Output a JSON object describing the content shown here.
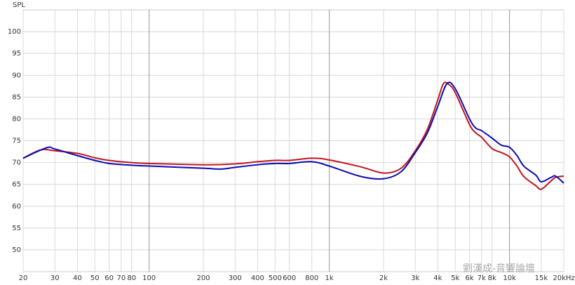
{
  "chart_data": {
    "type": "line",
    "y_label": "SPL",
    "watermark": "劉漢成-音響論壇",
    "xscale": "log",
    "grid": true,
    "xlim": [
      20,
      20000
    ],
    "ylim": [
      45,
      105
    ],
    "xticks": [
      20,
      30,
      40,
      50,
      60,
      70,
      80,
      100,
      200,
      300,
      400,
      500,
      600,
      800,
      {
        "value": 1000,
        "label": "1k"
      },
      {
        "value": 2000,
        "label": "2k"
      },
      {
        "value": 3000,
        "label": "3k"
      },
      {
        "value": 4000,
        "label": "4k"
      },
      {
        "value": 5000,
        "label": "5k"
      },
      {
        "value": 6000,
        "label": "6k"
      },
      {
        "value": 7000,
        "label": "7k"
      },
      {
        "value": 8000,
        "label": "8k"
      },
      {
        "value": 10000,
        "label": "10k"
      },
      {
        "value": 15000,
        "label": "15k"
      },
      {
        "value": 20000,
        "label": "20kHz"
      }
    ],
    "yticks": [
      50,
      55,
      60,
      65,
      70,
      75,
      80,
      85,
      90,
      95,
      100
    ],
    "series": [
      {
        "color": "#c0161e",
        "x": [
          20,
          25,
          30,
          40,
          50,
          60,
          80,
          100,
          200,
          300,
          400,
          500,
          600,
          800,
          1000,
          1500,
          2000,
          2500,
          3000,
          3500,
          4000,
          4300,
          4600,
          5000,
          6000,
          6500,
          7000,
          8000,
          9000,
          10000,
          11000,
          12000,
          14000,
          15000,
          17000,
          18000,
          20000
        ],
        "values": [
          71.0,
          72.9,
          72.7,
          72.1,
          71.1,
          70.5,
          70.0,
          69.8,
          69.5,
          69.7,
          70.2,
          70.5,
          70.5,
          71.0,
          70.6,
          69.0,
          67.6,
          68.7,
          72.7,
          77.6,
          84.4,
          88.1,
          87.9,
          86.0,
          78.7,
          76.8,
          75.8,
          73.2,
          72.3,
          71.3,
          69.2,
          66.8,
          64.7,
          63.9,
          65.8,
          66.6,
          66.9
        ]
      },
      {
        "color": "#0a0ab4",
        "x": [
          20,
          27,
          30,
          40,
          50,
          60,
          80,
          100,
          200,
          250,
          300,
          400,
          500,
          600,
          800,
          1000,
          1500,
          2000,
          2500,
          3000,
          3500,
          4000,
          4500,
          5000,
          6000,
          6500,
          7000,
          8000,
          9000,
          10000,
          11000,
          12000,
          14000,
          15000,
          17000,
          18000,
          20000
        ],
        "values": [
          71.0,
          73.4,
          73.1,
          71.6,
          70.5,
          69.8,
          69.4,
          69.2,
          68.7,
          68.5,
          68.9,
          69.5,
          69.8,
          69.8,
          70.2,
          69.2,
          66.8,
          66.3,
          67.9,
          72.3,
          76.8,
          82.9,
          88.1,
          86.9,
          80.0,
          77.9,
          77.3,
          75.6,
          74.0,
          73.5,
          71.6,
          69.2,
          67.1,
          65.6,
          66.6,
          66.9,
          65.3
        ]
      }
    ]
  }
}
